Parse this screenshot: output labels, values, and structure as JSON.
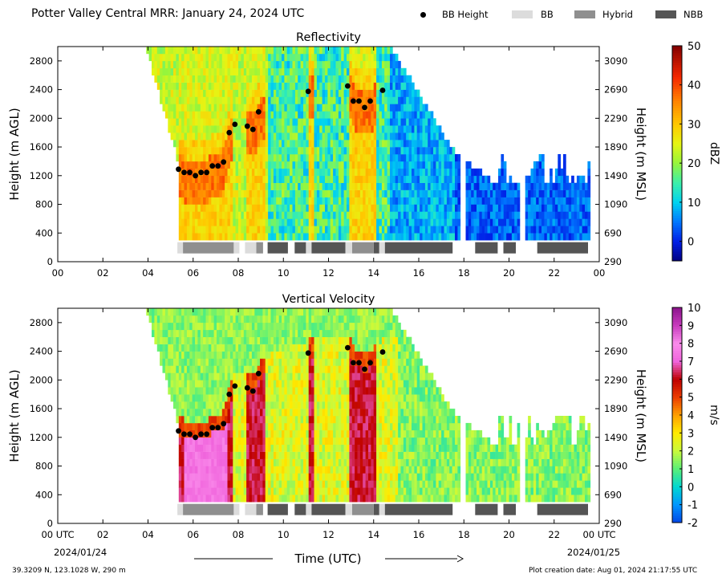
{
  "header": {
    "title": "Potter Valley Central MRR:  January 24, 2024 UTC"
  },
  "legend": {
    "items": [
      {
        "label": "BB Height",
        "color": "#000000",
        "kind": "dot"
      },
      {
        "label": "BB",
        "color": "#dcdcdc",
        "kind": "box"
      },
      {
        "label": "Hybrid",
        "color": "#8f8f8f",
        "kind": "box"
      },
      {
        "label": "NBB",
        "color": "#555555",
        "kind": "box"
      }
    ]
  },
  "footer": {
    "location": "39.3209 N, 123.1028 W, 290 m",
    "creation": "Plot creation date: Aug 01, 2024 21:17:55 UTC"
  },
  "chart_data": [
    {
      "type": "heatmap",
      "title": "Reflectivity",
      "xlabel": "",
      "ylabel": "Height (m AGL)",
      "ylabel_right": "Height (m MSL)",
      "colorbar_label": "dBZ",
      "colorbar_ticks": [
        "0",
        "10",
        "20",
        "30",
        "40",
        "50"
      ],
      "colorbar_range": [
        -5,
        50
      ],
      "x_ticks": [
        "00",
        "02",
        "04",
        "06",
        "08",
        "10",
        "12",
        "14",
        "16",
        "18",
        "20",
        "22",
        "00"
      ],
      "y_ticks": [
        "0",
        "400",
        "800",
        "1200",
        "1600",
        "2000",
        "2400",
        "2800"
      ],
      "y_ticks_right": [
        "290",
        "690",
        "1090",
        "1490",
        "1890",
        "2290",
        "2690",
        "3090"
      ],
      "xlim": [
        0,
        24
      ],
      "ylim": [
        0,
        3000
      ]
    },
    {
      "type": "heatmap",
      "title": "Vertical Velocity",
      "xlabel": "Time (UTC)",
      "ylabel": "Height (m AGL)",
      "ylabel_right": "Height (m MSL)",
      "colorbar_label": "m/s",
      "colorbar_ticks": [
        "-2",
        "-1",
        "0",
        "1",
        "2",
        "3",
        "4",
        "5",
        "6",
        "7",
        "8",
        "9",
        "10"
      ],
      "colorbar_range": [
        -2,
        10
      ],
      "x_ticks": [
        "00 UTC",
        "02",
        "04",
        "06",
        "08",
        "10",
        "12",
        "14",
        "16",
        "18",
        "20",
        "22",
        "00 UTC"
      ],
      "x_date_start": "2024/01/24",
      "x_date_end": "2024/01/25",
      "y_ticks": [
        "0",
        "400",
        "800",
        "1200",
        "1600",
        "2000",
        "2400",
        "2800"
      ],
      "y_ticks_right": [
        "290",
        "690",
        "1090",
        "1490",
        "1890",
        "2290",
        "2690",
        "3090"
      ],
      "xlim": [
        0,
        24
      ],
      "ylim": [
        0,
        3000
      ]
    }
  ],
  "bright_band": {
    "heights_m_agl": [
      {
        "t": 5.35,
        "h": 1290
      },
      {
        "t": 5.6,
        "h": 1245
      },
      {
        "t": 5.85,
        "h": 1245
      },
      {
        "t": 6.1,
        "h": 1200
      },
      {
        "t": 6.35,
        "h": 1245
      },
      {
        "t": 6.6,
        "h": 1245
      },
      {
        "t": 6.85,
        "h": 1335
      },
      {
        "t": 7.1,
        "h": 1335
      },
      {
        "t": 7.35,
        "h": 1390
      },
      {
        "t": 7.6,
        "h": 1800
      },
      {
        "t": 7.85,
        "h": 1915
      },
      {
        "t": 8.4,
        "h": 1890
      },
      {
        "t": 8.65,
        "h": 1845
      },
      {
        "t": 8.9,
        "h": 2090
      },
      {
        "t": 11.1,
        "h": 2375
      },
      {
        "t": 12.85,
        "h": 2450
      },
      {
        "t": 13.1,
        "h": 2240
      },
      {
        "t": 13.35,
        "h": 2240
      },
      {
        "t": 13.6,
        "h": 2150
      },
      {
        "t": 13.85,
        "h": 2240
      },
      {
        "t": 14.4,
        "h": 2390
      }
    ],
    "classification": [
      {
        "start": 5.3,
        "end": 5.55,
        "class": "BB"
      },
      {
        "start": 5.55,
        "end": 7.8,
        "class": "Hybrid"
      },
      {
        "start": 7.8,
        "end": 8.05,
        "class": "BB"
      },
      {
        "start": 8.3,
        "end": 8.8,
        "class": "BB"
      },
      {
        "start": 8.8,
        "end": 9.1,
        "class": "Hybrid"
      },
      {
        "start": 9.3,
        "end": 10.2,
        "class": "NBB"
      },
      {
        "start": 10.5,
        "end": 11.0,
        "class": "NBB"
      },
      {
        "start": 11.0,
        "end": 11.25,
        "class": "BB"
      },
      {
        "start": 11.25,
        "end": 12.75,
        "class": "NBB"
      },
      {
        "start": 12.75,
        "end": 13.05,
        "class": "BB"
      },
      {
        "start": 13.05,
        "end": 14.0,
        "class": "Hybrid"
      },
      {
        "start": 14.0,
        "end": 14.25,
        "class": "NBB"
      },
      {
        "start": 14.25,
        "end": 14.5,
        "class": "BB"
      },
      {
        "start": 14.5,
        "end": 17.5,
        "class": "NBB"
      },
      {
        "start": 18.5,
        "end": 19.5,
        "class": "NBB"
      },
      {
        "start": 19.75,
        "end": 20.3,
        "class": "NBB"
      },
      {
        "start": 21.25,
        "end": 23.5,
        "class": "NBB"
      }
    ]
  }
}
